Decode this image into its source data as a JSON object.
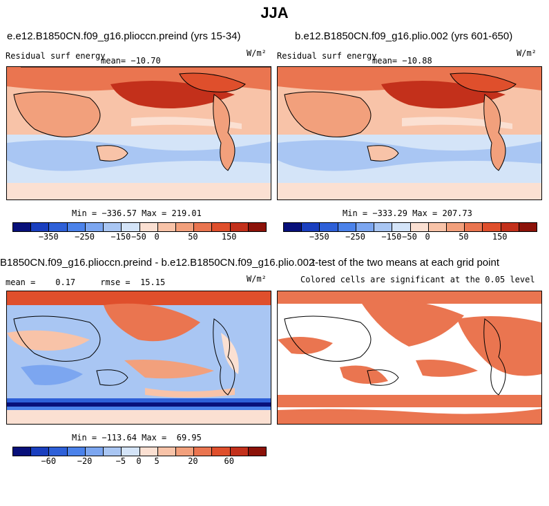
{
  "season": "JJA",
  "panels": {
    "top_left": {
      "title": "e.e12.B1850CN.f09_g16.plioccn.preind (yrs 15-34)",
      "variable": "Residual surf energy",
      "mean": "mean= −10.70",
      "units": "W/m²",
      "minmax": "Min = −336.57 Max = 219.01"
    },
    "top_right": {
      "title": "b.e12.B1850CN.f09_g16.plio.002 (yrs 601-650)",
      "variable": "Residual surf energy",
      "mean": "mean= −10.88",
      "units": "W/m²",
      "minmax": "Min = −333.29 Max = 207.73"
    },
    "bottom_left": {
      "title": "B1850CN.f09_g16.plioccn.preind - b.e12.B1850CN.f09_g16.plio.002",
      "stats": "mean =    0.17     rmse =  15.15",
      "units": "W/m²",
      "minmax": "Min = −113.64 Max =  69.95"
    },
    "bottom_right": {
      "title": "t-test of the two means at each grid point",
      "subtitle": "Colored cells are significant at the 0.05 level"
    }
  },
  "colorbars": {
    "abs_ticks": [
      "−350",
      "−250",
      "−150",
      "−50",
      "0",
      "50",
      "150"
    ],
    "diff_ticks": [
      "−60",
      "−20",
      "−5",
      "0",
      "5",
      "20",
      "60"
    ],
    "colors": [
      "#08107a",
      "#1a3fbf",
      "#2e60d8",
      "#4b82ea",
      "#7ca6f0",
      "#a9c6f3",
      "#d4e4f8",
      "#fbe0d2",
      "#f8c3a8",
      "#f2a07c",
      "#ea7550",
      "#df4f2c",
      "#c3301b",
      "#8c1209"
    ]
  }
}
